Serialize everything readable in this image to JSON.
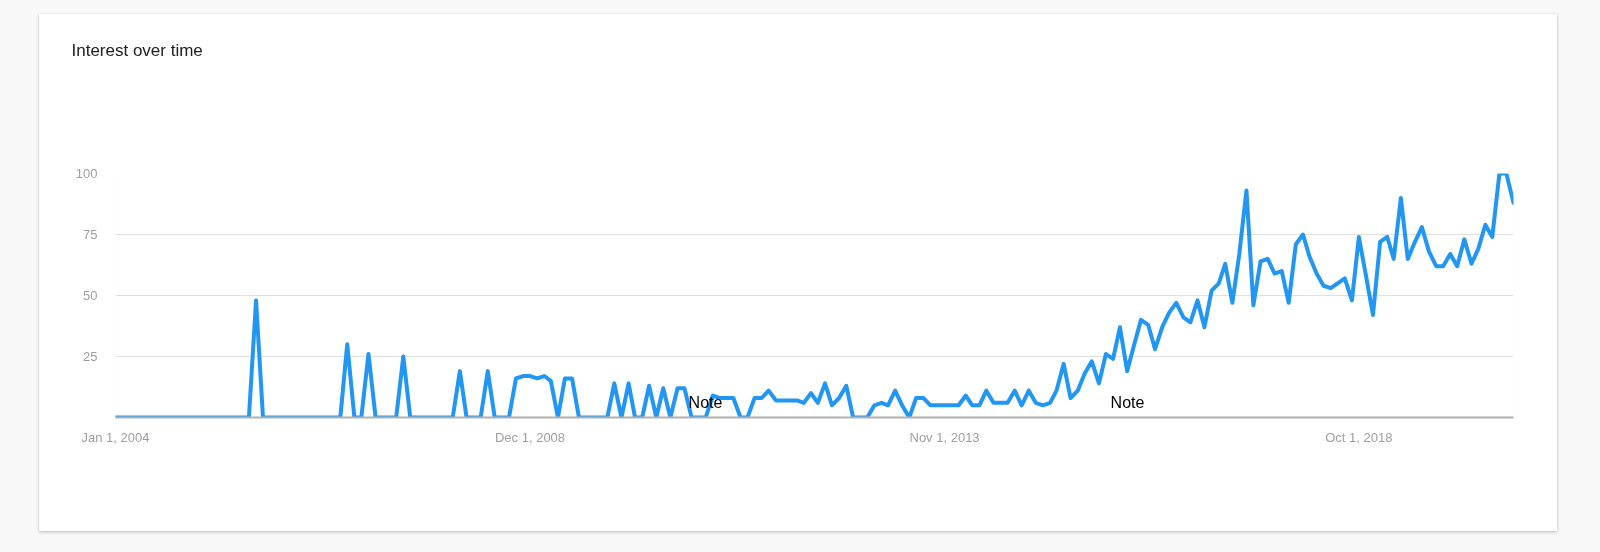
{
  "chart_data": {
    "type": "line",
    "title": "Interest over time",
    "x": [
      "2004-01",
      "2004-02",
      "2004-03",
      "2004-04",
      "2004-05",
      "2004-06",
      "2004-07",
      "2004-08",
      "2004-09",
      "2004-10",
      "2004-11",
      "2004-12",
      "2005-01",
      "2005-02",
      "2005-03",
      "2005-04",
      "2005-05",
      "2005-06",
      "2005-07",
      "2005-08",
      "2005-09",
      "2005-10",
      "2005-11",
      "2005-12",
      "2006-01",
      "2006-02",
      "2006-03",
      "2006-04",
      "2006-05",
      "2006-06",
      "2006-07",
      "2006-08",
      "2006-09",
      "2006-10",
      "2006-11",
      "2006-12",
      "2007-01",
      "2007-02",
      "2007-03",
      "2007-04",
      "2007-05",
      "2007-06",
      "2007-07",
      "2007-08",
      "2007-09",
      "2007-10",
      "2007-11",
      "2007-12",
      "2008-01",
      "2008-02",
      "2008-03",
      "2008-04",
      "2008-05",
      "2008-06",
      "2008-07",
      "2008-08",
      "2008-09",
      "2008-10",
      "2008-11",
      "2008-12",
      "2009-01",
      "2009-02",
      "2009-03",
      "2009-04",
      "2009-05",
      "2009-06",
      "2009-07",
      "2009-08",
      "2009-09",
      "2009-10",
      "2009-11",
      "2009-12",
      "2010-01",
      "2010-02",
      "2010-03",
      "2010-04",
      "2010-05",
      "2010-06",
      "2010-07",
      "2010-08",
      "2010-09",
      "2010-10",
      "2010-11",
      "2010-12",
      "2011-01",
      "2011-02",
      "2011-03",
      "2011-04",
      "2011-05",
      "2011-06",
      "2011-07",
      "2011-08",
      "2011-09",
      "2011-10",
      "2011-11",
      "2011-12",
      "2012-01",
      "2012-02",
      "2012-03",
      "2012-04",
      "2012-05",
      "2012-06",
      "2012-07",
      "2012-08",
      "2012-09",
      "2012-10",
      "2012-11",
      "2012-12",
      "2013-01",
      "2013-02",
      "2013-03",
      "2013-04",
      "2013-05",
      "2013-06",
      "2013-07",
      "2013-08",
      "2013-09",
      "2013-10",
      "2013-11",
      "2013-12",
      "2014-01",
      "2014-02",
      "2014-03",
      "2014-04",
      "2014-05",
      "2014-06",
      "2014-07",
      "2014-08",
      "2014-09",
      "2014-10",
      "2014-11",
      "2014-12",
      "2015-01",
      "2015-02",
      "2015-03",
      "2015-04",
      "2015-05",
      "2015-06",
      "2015-07",
      "2015-08",
      "2015-09",
      "2015-10",
      "2015-11",
      "2015-12",
      "2016-01",
      "2016-02",
      "2016-03",
      "2016-04",
      "2016-05",
      "2016-06",
      "2016-07",
      "2016-08",
      "2016-09",
      "2016-10",
      "2016-11",
      "2016-12",
      "2017-01",
      "2017-02",
      "2017-03",
      "2017-04",
      "2017-05",
      "2017-06",
      "2017-07",
      "2017-08",
      "2017-09",
      "2017-10",
      "2017-11",
      "2017-12",
      "2018-01",
      "2018-02",
      "2018-03",
      "2018-04",
      "2018-05",
      "2018-06",
      "2018-07",
      "2018-08",
      "2018-09",
      "2018-10",
      "2018-11",
      "2018-12",
      "2019-01",
      "2019-02",
      "2019-03",
      "2019-04",
      "2019-05",
      "2019-06",
      "2019-07",
      "2019-08",
      "2019-09",
      "2019-10",
      "2019-11",
      "2019-12",
      "2020-01",
      "2020-02",
      "2020-03",
      "2020-04",
      "2020-05",
      "2020-06",
      "2020-07",
      "2020-08"
    ],
    "series": [
      {
        "color": "#2196f3",
        "values": [
          0,
          0,
          0,
          0,
          0,
          0,
          0,
          0,
          0,
          0,
          0,
          0,
          0,
          0,
          0,
          0,
          0,
          0,
          0,
          0,
          48,
          0,
          0,
          0,
          0,
          0,
          0,
          0,
          0,
          0,
          0,
          0,
          0,
          30,
          0,
          0,
          26,
          0,
          0,
          0,
          0,
          25,
          0,
          0,
          0,
          0,
          0,
          0,
          0,
          19,
          0,
          0,
          0,
          19,
          0,
          0,
          0,
          16,
          17,
          17,
          16,
          17,
          15,
          0,
          16,
          16,
          0,
          0,
          0,
          0,
          0,
          14,
          0,
          14,
          0,
          0,
          13,
          0,
          12,
          0,
          12,
          12,
          0,
          0,
          0,
          9,
          8,
          8,
          8,
          0,
          0,
          8,
          8,
          11,
          7,
          7,
          7,
          7,
          6,
          10,
          6,
          14,
          5,
          8,
          13,
          0,
          0,
          0,
          5,
          6,
          5,
          11,
          5,
          0,
          8,
          8,
          5,
          5,
          5,
          5,
          5,
          9,
          5,
          5,
          11,
          6,
          6,
          6,
          11,
          5,
          11,
          6,
          5,
          6,
          11,
          22,
          8,
          11,
          18,
          23,
          14,
          26,
          24,
          37,
          19,
          30,
          40,
          38,
          28,
          37,
          43,
          47,
          41,
          39,
          48,
          37,
          52,
          55,
          63,
          47,
          67,
          93,
          46,
          64,
          65,
          59,
          60,
          47,
          71,
          75,
          66,
          59,
          54,
          53,
          55,
          57,
          48,
          74,
          58,
          42,
          72,
          74,
          65,
          90,
          65,
          72,
          78,
          68,
          62,
          62,
          67,
          62,
          73,
          63,
          69,
          79,
          74,
          100,
          100,
          88
        ]
      }
    ],
    "xlim": [
      "2004-01",
      "2020-08"
    ],
    "xticks": [
      {
        "value": "2004-01-01",
        "label": "Jan 1, 2004"
      },
      {
        "value": "2008-12-01",
        "label": "Dec 1, 2008"
      },
      {
        "value": "2013-11-01",
        "label": "Nov 1, 2013"
      },
      {
        "value": "2018-10-01",
        "label": "Oct 1, 2018"
      }
    ],
    "ylim": [
      0,
      100
    ],
    "yticks": [
      25,
      50,
      75,
      100
    ],
    "grid": "y",
    "line_style": "solid",
    "annotations": [
      "Note",
      "Note"
    ]
  }
}
